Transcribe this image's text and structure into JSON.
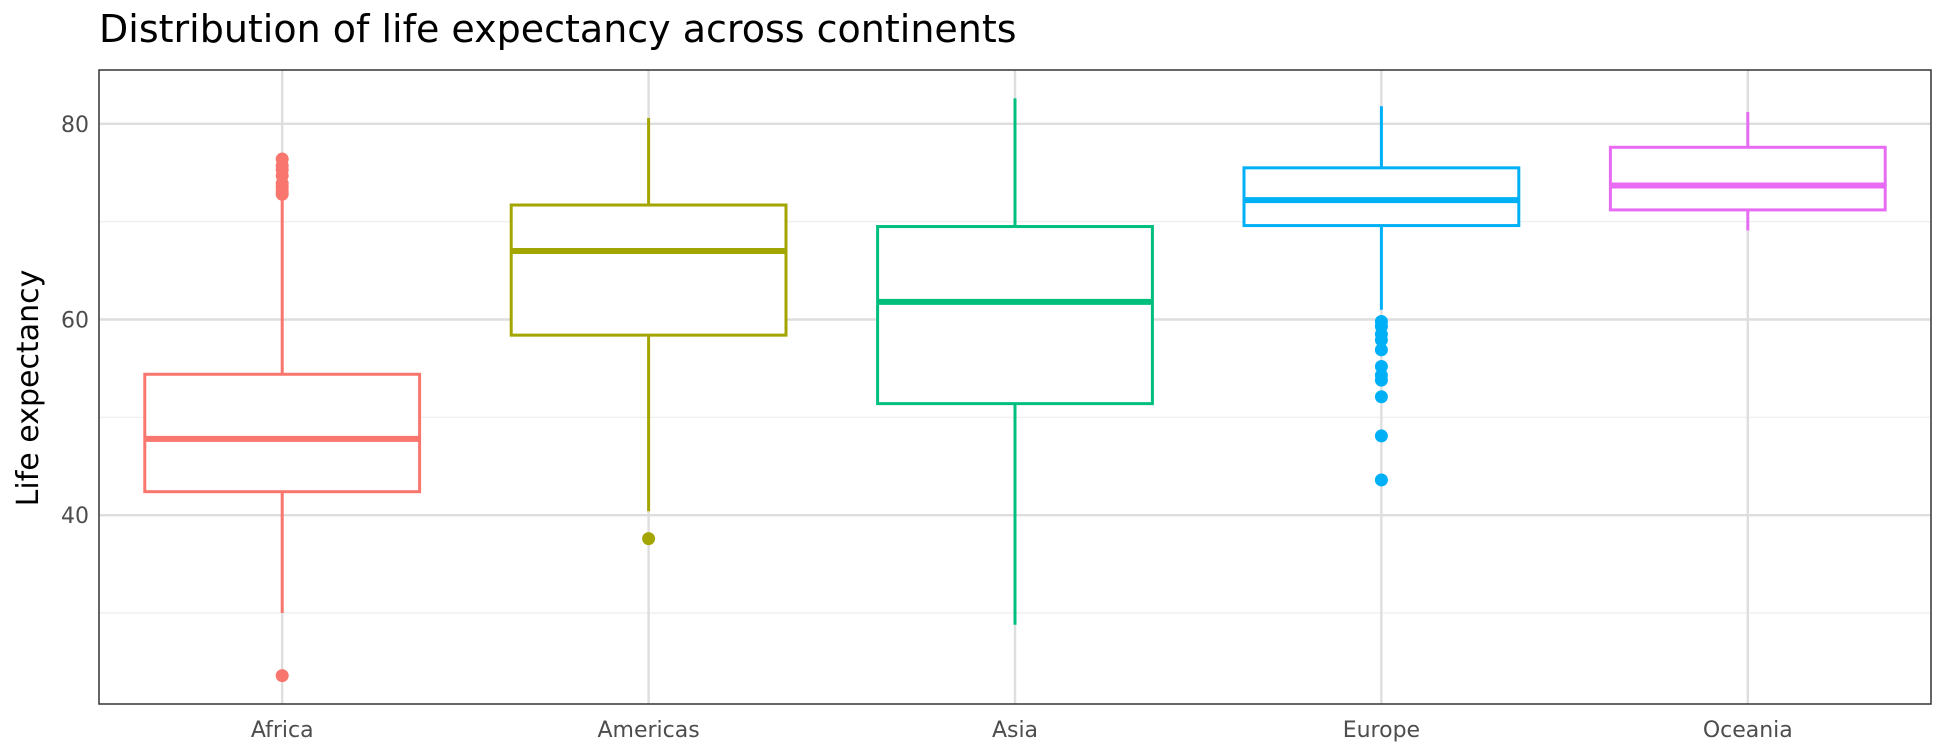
{
  "chart_data": {
    "type": "boxplot",
    "title": "Distribution of life expectancy across continents",
    "xlabel": "",
    "ylabel": "Life expectancy",
    "ylim": [
      20.7,
      85.5
    ],
    "yticks": [
      40,
      60,
      80
    ],
    "categories": [
      "Africa",
      "Americas",
      "Asia",
      "Europe",
      "Oceania"
    ],
    "colors": [
      "#F8766D",
      "#A3A500",
      "#00BF7D",
      "#00B0F6",
      "#E76BF3"
    ],
    "grid": true,
    "legend": "none",
    "boxes": [
      {
        "category": "Africa",
        "whisker_low": 30.0,
        "q1": 42.4,
        "median": 47.8,
        "q3": 54.4,
        "whisker_high": 72.7,
        "outliers": [
          23.6,
          72.8,
          73.1,
          73.5,
          73.9,
          74.7,
          75.3,
          75.7,
          76.4
        ]
      },
      {
        "category": "Americas",
        "whisker_low": 40.4,
        "q1": 58.4,
        "median": 67.0,
        "q3": 71.7,
        "whisker_high": 80.6,
        "outliers": [
          37.6
        ]
      },
      {
        "category": "Asia",
        "whisker_low": 28.8,
        "q1": 51.4,
        "median": 61.8,
        "q3": 69.5,
        "whisker_high": 82.6,
        "outliers": []
      },
      {
        "category": "Europe",
        "whisker_low": 61.0,
        "q1": 69.6,
        "median": 72.2,
        "q3": 75.5,
        "whisker_high": 81.8,
        "outliers": [
          43.6,
          48.1,
          52.1,
          53.8,
          54.3,
          55.2,
          56.9,
          57.9,
          58.5,
          59.3,
          59.8
        ]
      },
      {
        "category": "Oceania",
        "whisker_low": 69.1,
        "q1": 71.2,
        "median": 73.7,
        "q3": 77.6,
        "whisker_high": 81.2,
        "outliers": []
      }
    ]
  }
}
